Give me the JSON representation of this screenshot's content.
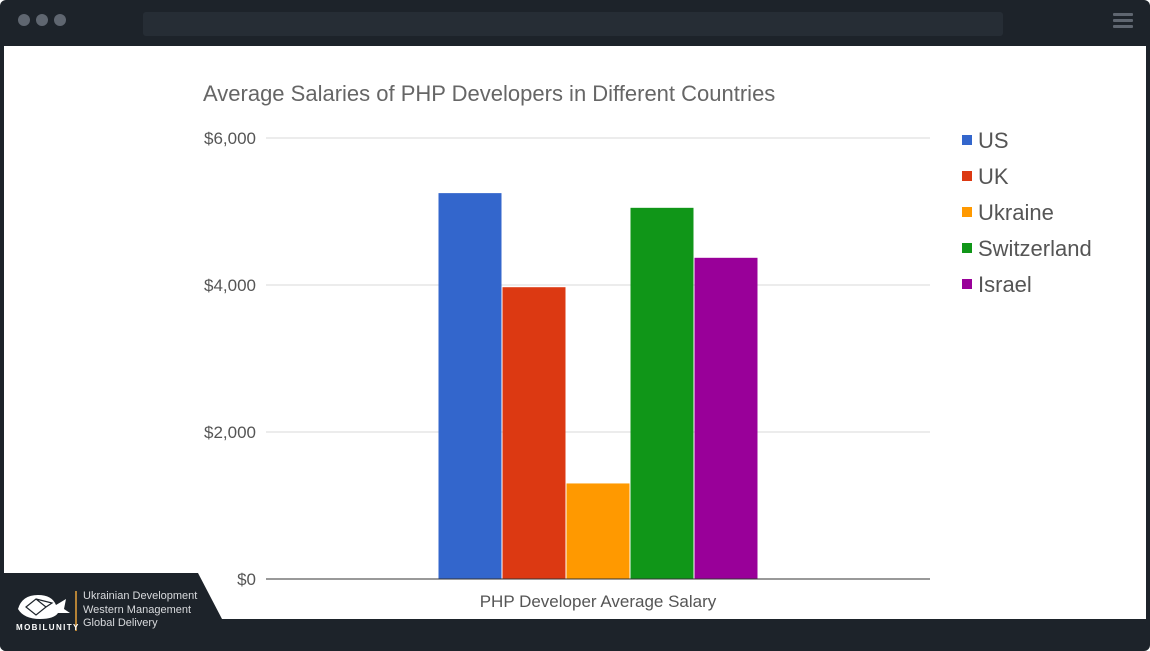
{
  "window": {
    "dot_color": "#5f6670",
    "menu_icon": "hamburger-menu-icon"
  },
  "chart_data": {
    "type": "bar",
    "title": "Average Salaries of PHP Developers in Different Countries",
    "categories": [
      "PHP Developer Average Salary"
    ],
    "series": [
      {
        "name": "US",
        "values": [
          5250
        ],
        "color": "#3366cc"
      },
      {
        "name": "UK",
        "values": [
          3970
        ],
        "color": "#dc3912"
      },
      {
        "name": "Ukraine",
        "values": [
          1300
        ],
        "color": "#ff9900"
      },
      {
        "name": "Switzerland",
        "values": [
          5050
        ],
        "color": "#109618"
      },
      {
        "name": "Israel",
        "values": [
          4370
        ],
        "color": "#990099"
      }
    ],
    "ylim": [
      0,
      6000
    ],
    "yticks": [
      {
        "value": 0,
        "label": "$0"
      },
      {
        "value": 2000,
        "label": "$2,000"
      },
      {
        "value": 4000,
        "label": "$4,000"
      },
      {
        "value": 6000,
        "label": "$6,000"
      }
    ],
    "grid": true,
    "legend": "right"
  },
  "badge": {
    "brand": "MOBILUNITY",
    "logo_icon": "whale-logo-icon",
    "tagline": [
      "Ukrainian Development",
      "Western Management",
      "Global Delivery"
    ],
    "accent": "#e8a33b"
  }
}
